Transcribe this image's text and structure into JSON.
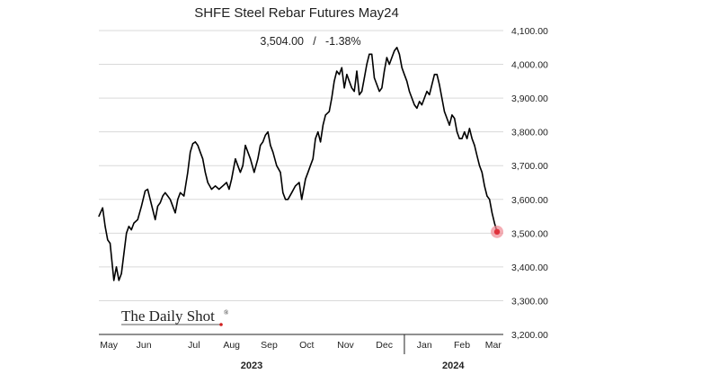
{
  "chart_data": {
    "type": "line",
    "title": "SHFE Steel Rebar Futures May24",
    "subtitle_value": "3,504.00",
    "subtitle_sep": "/",
    "subtitle_change": "-1.38%",
    "ylim": [
      3200,
      4100
    ],
    "yticks": [
      "4,100.00",
      "4,000.00",
      "3,900.00",
      "3,800.00",
      "3,700.00",
      "3,600.00",
      "3,500.00",
      "3,400.00",
      "3,300.00",
      "3,200.00"
    ],
    "ytick_values": [
      4100,
      4000,
      3900,
      3800,
      3700,
      3600,
      3500,
      3400,
      3300,
      3200
    ],
    "grid": true,
    "x_range": [
      "2023-05-01",
      "2024-03-19"
    ],
    "month_labels": [
      {
        "label": "May",
        "date": "2023-05-09"
      },
      {
        "label": "Jun",
        "date": "2023-06-06"
      },
      {
        "label": "Jul",
        "date": "2023-07-16"
      },
      {
        "label": "Aug",
        "date": "2023-08-15"
      },
      {
        "label": "Sep",
        "date": "2023-09-14"
      },
      {
        "label": "Oct",
        "date": "2023-10-14"
      },
      {
        "label": "Nov",
        "date": "2023-11-14"
      },
      {
        "label": "Dec",
        "date": "2023-12-15"
      },
      {
        "label": "Jan",
        "date": "2024-01-16"
      },
      {
        "label": "Feb",
        "date": "2024-02-15"
      },
      {
        "label": "Mar",
        "date": "2024-03-11"
      }
    ],
    "year_labels": [
      {
        "label": "2023",
        "date": "2023-08-31"
      },
      {
        "label": "2024",
        "date": "2024-02-08"
      }
    ],
    "year_divider_date": "2023-12-31",
    "series": [
      {
        "color": "#000000",
        "points": [
          [
            "2023-05-01",
            3550
          ],
          [
            "2023-05-04",
            3575
          ],
          [
            "2023-05-06",
            3520
          ],
          [
            "2023-05-08",
            3480
          ],
          [
            "2023-05-10",
            3470
          ],
          [
            "2023-05-13",
            3360
          ],
          [
            "2023-05-15",
            3400
          ],
          [
            "2023-05-17",
            3360
          ],
          [
            "2023-05-19",
            3380
          ],
          [
            "2023-05-21",
            3440
          ],
          [
            "2023-05-23",
            3500
          ],
          [
            "2023-05-25",
            3520
          ],
          [
            "2023-05-27",
            3510
          ],
          [
            "2023-05-29",
            3530
          ],
          [
            "2023-06-01",
            3540
          ],
          [
            "2023-06-04",
            3580
          ],
          [
            "2023-06-07",
            3625
          ],
          [
            "2023-06-09",
            3630
          ],
          [
            "2023-06-11",
            3600
          ],
          [
            "2023-06-13",
            3570
          ],
          [
            "2023-06-15",
            3540
          ],
          [
            "2023-06-17",
            3580
          ],
          [
            "2023-06-19",
            3590
          ],
          [
            "2023-06-21",
            3610
          ],
          [
            "2023-06-23",
            3620
          ],
          [
            "2023-06-25",
            3610
          ],
          [
            "2023-06-27",
            3600
          ],
          [
            "2023-06-29",
            3580
          ],
          [
            "2023-07-01",
            3560
          ],
          [
            "2023-07-03",
            3600
          ],
          [
            "2023-07-05",
            3620
          ],
          [
            "2023-07-08",
            3610
          ],
          [
            "2023-07-11",
            3680
          ],
          [
            "2023-07-13",
            3740
          ],
          [
            "2023-07-15",
            3765
          ],
          [
            "2023-07-17",
            3770
          ],
          [
            "2023-07-19",
            3760
          ],
          [
            "2023-07-21",
            3740
          ],
          [
            "2023-07-23",
            3720
          ],
          [
            "2023-07-25",
            3680
          ],
          [
            "2023-07-27",
            3650
          ],
          [
            "2023-07-30",
            3630
          ],
          [
            "2023-08-02",
            3640
          ],
          [
            "2023-08-05",
            3630
          ],
          [
            "2023-08-08",
            3640
          ],
          [
            "2023-08-11",
            3650
          ],
          [
            "2023-08-13",
            3630
          ],
          [
            "2023-08-15",
            3660
          ],
          [
            "2023-08-18",
            3720
          ],
          [
            "2023-08-20",
            3700
          ],
          [
            "2023-08-22",
            3680
          ],
          [
            "2023-08-24",
            3700
          ],
          [
            "2023-08-26",
            3760
          ],
          [
            "2023-08-28",
            3740
          ],
          [
            "2023-08-30",
            3720
          ],
          [
            "2023-09-02",
            3680
          ],
          [
            "2023-09-05",
            3720
          ],
          [
            "2023-09-07",
            3760
          ],
          [
            "2023-09-09",
            3770
          ],
          [
            "2023-09-11",
            3790
          ],
          [
            "2023-09-13",
            3800
          ],
          [
            "2023-09-15",
            3760
          ],
          [
            "2023-09-17",
            3740
          ],
          [
            "2023-09-20",
            3700
          ],
          [
            "2023-09-23",
            3680
          ],
          [
            "2023-09-25",
            3620
          ],
          [
            "2023-09-27",
            3600
          ],
          [
            "2023-09-29",
            3600
          ],
          [
            "2023-10-02",
            3620
          ],
          [
            "2023-10-05",
            3640
          ],
          [
            "2023-10-08",
            3650
          ],
          [
            "2023-10-10",
            3600
          ],
          [
            "2023-10-13",
            3660
          ],
          [
            "2023-10-15",
            3680
          ],
          [
            "2023-10-17",
            3700
          ],
          [
            "2023-10-19",
            3720
          ],
          [
            "2023-10-21",
            3780
          ],
          [
            "2023-10-23",
            3800
          ],
          [
            "2023-10-25",
            3770
          ],
          [
            "2023-10-27",
            3820
          ],
          [
            "2023-10-29",
            3850
          ],
          [
            "2023-11-01",
            3860
          ],
          [
            "2023-11-03",
            3900
          ],
          [
            "2023-11-05",
            3950
          ],
          [
            "2023-11-07",
            3980
          ],
          [
            "2023-11-09",
            3970
          ],
          [
            "2023-11-11",
            3990
          ],
          [
            "2023-11-13",
            3930
          ],
          [
            "2023-11-15",
            3970
          ],
          [
            "2023-11-17",
            3950
          ],
          [
            "2023-11-19",
            3930
          ],
          [
            "2023-11-21",
            3920
          ],
          [
            "2023-11-23",
            3980
          ],
          [
            "2023-11-25",
            3910
          ],
          [
            "2023-11-27",
            3920
          ],
          [
            "2023-11-29",
            3960
          ],
          [
            "2023-12-01",
            4000
          ],
          [
            "2023-12-03",
            4030
          ],
          [
            "2023-12-05",
            4030
          ],
          [
            "2023-12-07",
            3960
          ],
          [
            "2023-12-09",
            3940
          ],
          [
            "2023-12-11",
            3920
          ],
          [
            "2023-12-13",
            3930
          ],
          [
            "2023-12-15",
            3980
          ],
          [
            "2023-12-17",
            4020
          ],
          [
            "2023-12-19",
            4000
          ],
          [
            "2023-12-21",
            4020
          ],
          [
            "2023-12-23",
            4040
          ],
          [
            "2023-12-25",
            4050
          ],
          [
            "2023-12-27",
            4030
          ],
          [
            "2023-12-29",
            3990
          ],
          [
            "2023-12-31",
            3970
          ],
          [
            "2024-01-02",
            3950
          ],
          [
            "2024-01-04",
            3920
          ],
          [
            "2024-01-06",
            3900
          ],
          [
            "2024-01-08",
            3880
          ],
          [
            "2024-01-10",
            3870
          ],
          [
            "2024-01-12",
            3890
          ],
          [
            "2024-01-14",
            3880
          ],
          [
            "2024-01-16",
            3900
          ],
          [
            "2024-01-18",
            3920
          ],
          [
            "2024-01-20",
            3910
          ],
          [
            "2024-01-22",
            3940
          ],
          [
            "2024-01-24",
            3970
          ],
          [
            "2024-01-26",
            3970
          ],
          [
            "2024-01-28",
            3940
          ],
          [
            "2024-01-30",
            3900
          ],
          [
            "2024-02-01",
            3860
          ],
          [
            "2024-02-03",
            3840
          ],
          [
            "2024-02-05",
            3820
          ],
          [
            "2024-02-07",
            3850
          ],
          [
            "2024-02-09",
            3840
          ],
          [
            "2024-02-11",
            3800
          ],
          [
            "2024-02-13",
            3780
          ],
          [
            "2024-02-15",
            3780
          ],
          [
            "2024-02-17",
            3800
          ],
          [
            "2024-02-19",
            3780
          ],
          [
            "2024-02-21",
            3810
          ],
          [
            "2024-02-23",
            3780
          ],
          [
            "2024-02-25",
            3760
          ],
          [
            "2024-02-27",
            3730
          ],
          [
            "2024-02-29",
            3700
          ],
          [
            "2024-03-02",
            3680
          ],
          [
            "2024-03-04",
            3640
          ],
          [
            "2024-03-06",
            3610
          ],
          [
            "2024-03-08",
            3600
          ],
          [
            "2024-03-10",
            3560
          ],
          [
            "2024-03-12",
            3530
          ],
          [
            "2024-03-14",
            3504
          ]
        ]
      }
    ],
    "last_point_marker_color": "#e0323c"
  },
  "watermark": "The Daily Shot",
  "watermark_mark": "®"
}
